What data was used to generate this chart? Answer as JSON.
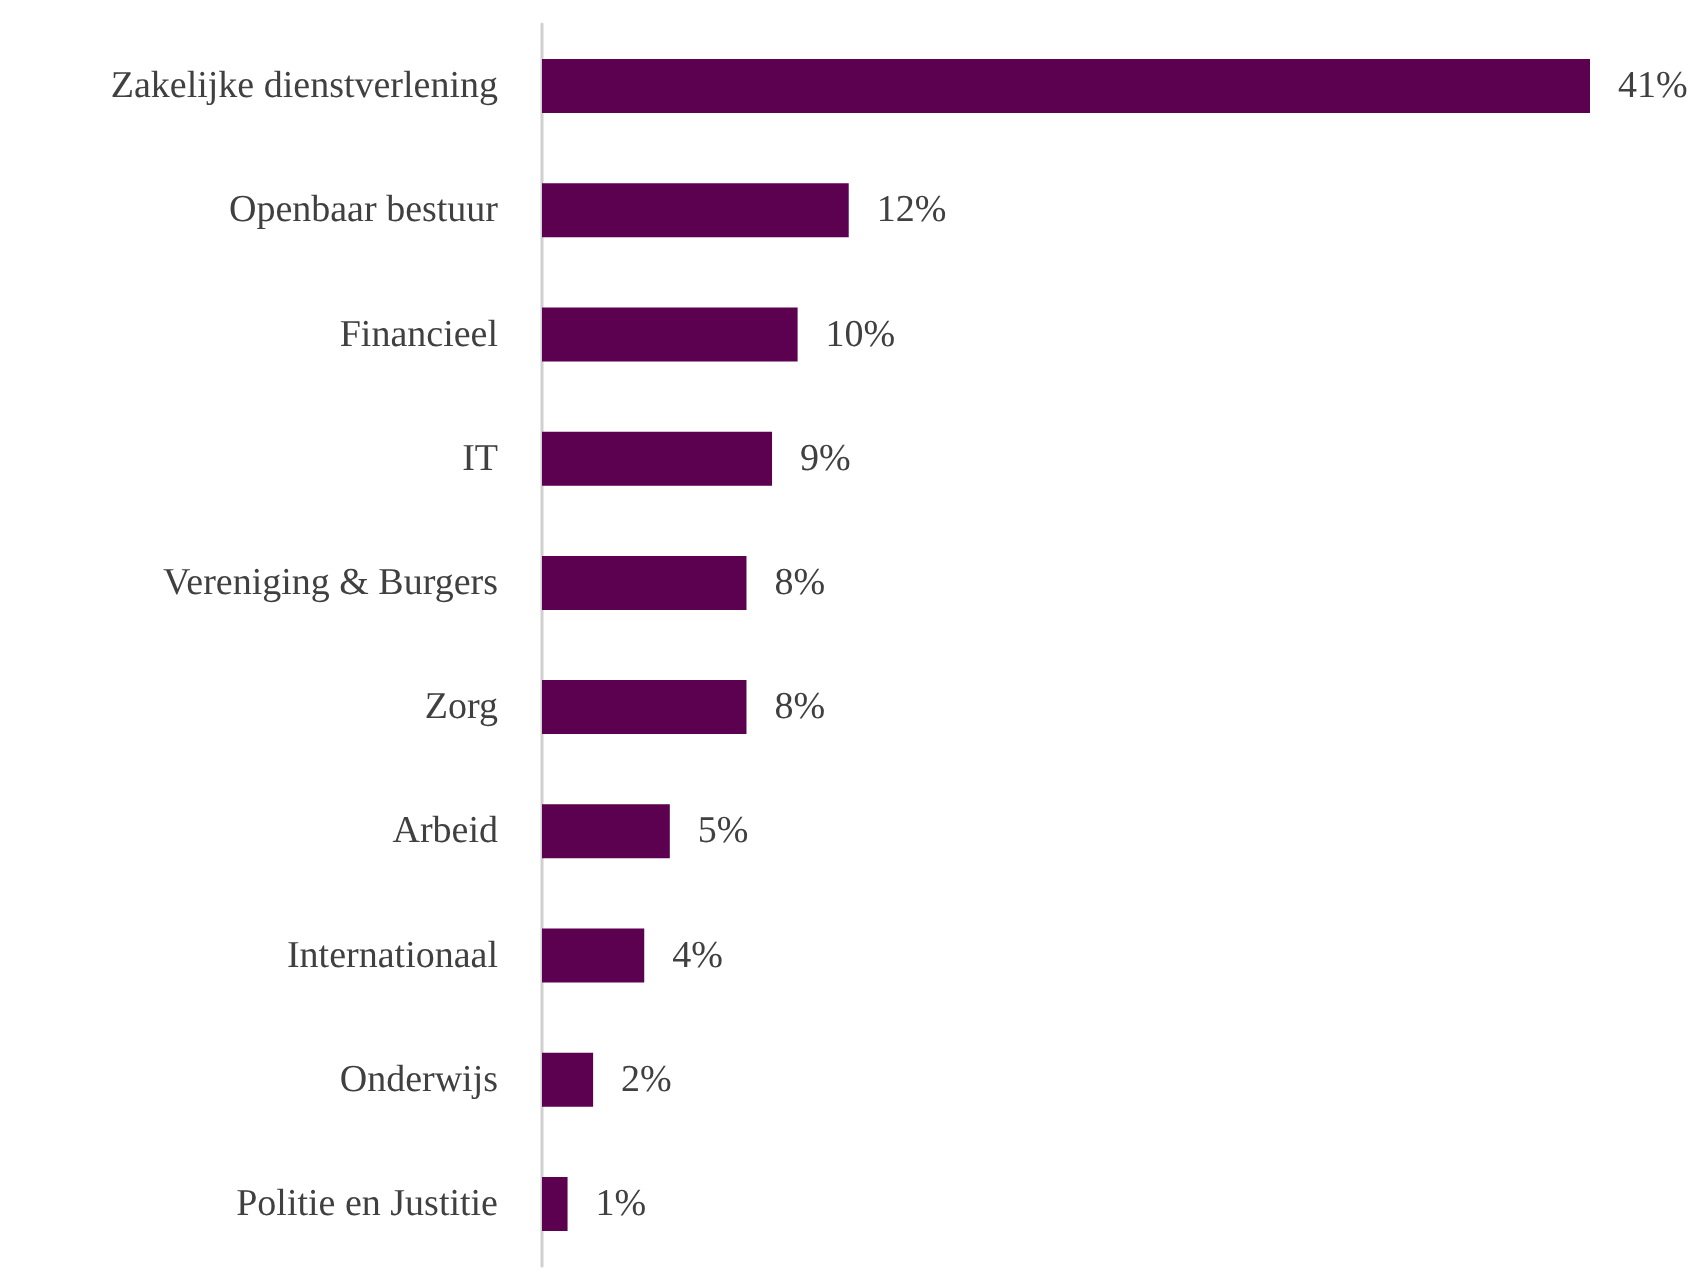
{
  "chart_data": {
    "type": "bar",
    "orientation": "horizontal",
    "categories": [
      "Zakelijke dienstverlening",
      "Openbaar bestuur",
      "Financieel",
      "IT",
      "Vereniging & Burgers",
      "Zorg",
      "Arbeid",
      "Internationaal",
      "Onderwijs",
      "Politie en Justitie"
    ],
    "values": [
      41,
      12,
      10,
      9,
      8,
      8,
      5,
      4,
      2,
      1
    ],
    "value_labels": [
      "41%",
      "12%",
      "10%",
      "9%",
      "8%",
      "8%",
      "5%",
      "4%",
      "2%",
      "1%"
    ],
    "color": "#5c0050",
    "tick_labels": "y"
  }
}
